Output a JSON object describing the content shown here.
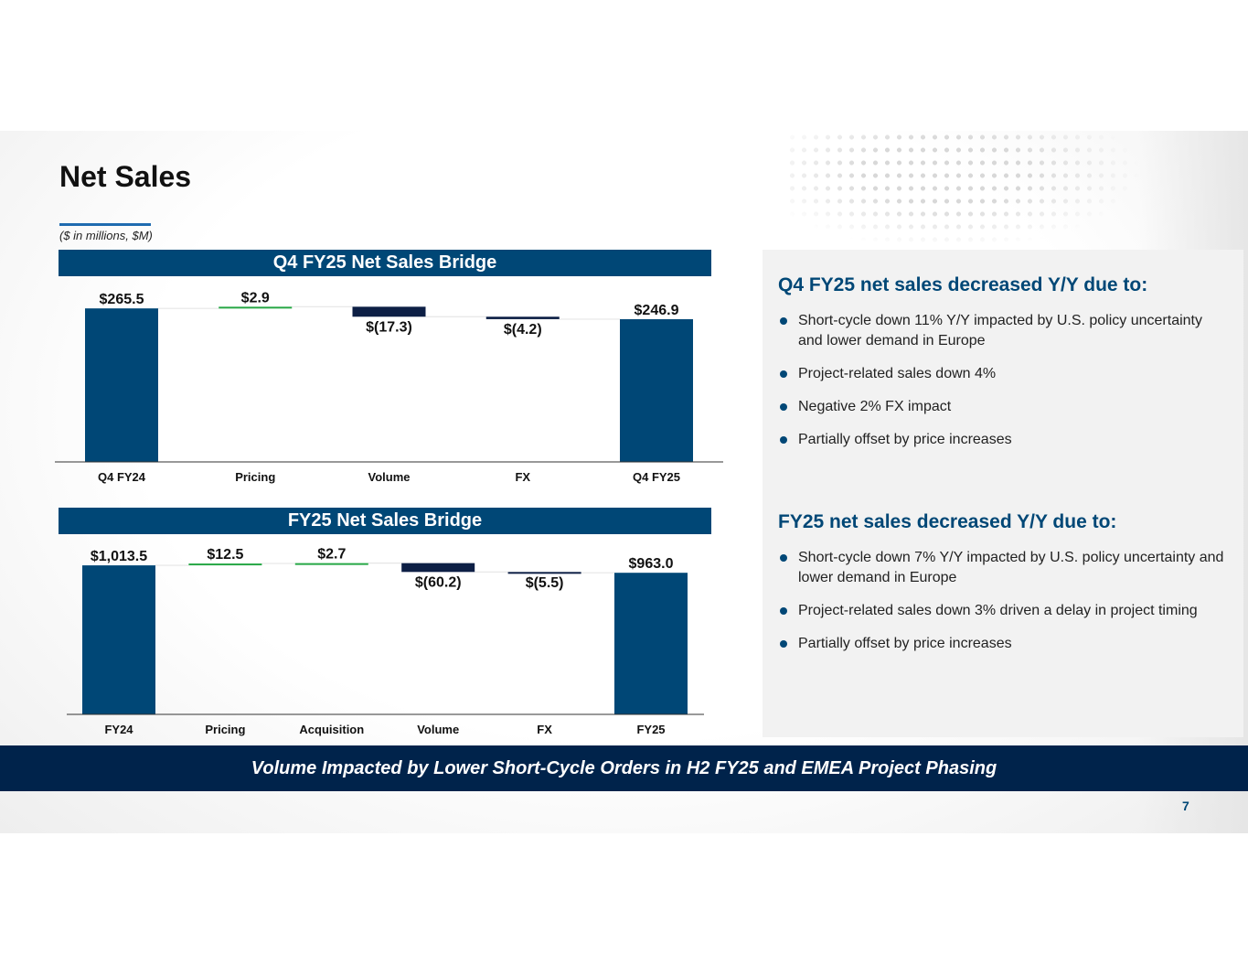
{
  "title": "Net Sales",
  "units": "($ in millions, $M)",
  "colors": {
    "base": "#004776",
    "increase": "#27a745",
    "decrease": "#0d1f45",
    "connector": "#e6e6e6",
    "axis": "#333333"
  },
  "chart_data": [
    {
      "type": "bar",
      "subtype": "waterfall",
      "title": "Q4 FY25 Net Sales Bridge",
      "categories": [
        "Q4 FY24",
        "Pricing",
        "Volume",
        "FX",
        "Q4 FY25"
      ],
      "values": [
        265.5,
        2.9,
        -17.3,
        -4.2,
        246.9
      ],
      "kinds": [
        "total",
        "delta",
        "delta",
        "delta",
        "total"
      ],
      "data_labels": [
        "$265.5",
        "$2.9",
        "$(17.3)",
        "$(4.2)",
        "$246.9"
      ],
      "xlabel": "",
      "ylabel": "",
      "ylim": [
        0,
        280
      ]
    },
    {
      "type": "bar",
      "subtype": "waterfall",
      "title": "FY25 Net Sales Bridge",
      "categories": [
        "FY24",
        "Pricing",
        "Acquisition",
        "Volume",
        "FX",
        "FY25"
      ],
      "values": [
        1013.5,
        12.5,
        2.7,
        -60.2,
        -5.5,
        963.0
      ],
      "kinds": [
        "total",
        "delta",
        "delta",
        "delta",
        "delta",
        "total"
      ],
      "data_labels": [
        "$1,013.5",
        "$12.5",
        "$2.7",
        "$(60.2)",
        "$(5.5)",
        "$963.0"
      ],
      "xlabel": "",
      "ylabel": "",
      "ylim": [
        0,
        1070
      ]
    }
  ],
  "panel": {
    "q4_heading": "Q4 FY25 net sales decreased Y/Y due to:",
    "q4_bullets": [
      "Short-cycle down 11% Y/Y impacted by U.S. policy uncertainty and lower demand in Europe",
      "Project-related sales down 4%",
      "Negative 2% FX impact",
      "Partially offset by price increases"
    ],
    "fy_heading": "FY25 net sales decreased Y/Y due to:",
    "fy_bullets": [
      "Short-cycle down 7% Y/Y impacted by U.S. policy uncertainty and lower demand in Europe",
      "Project-related sales down 3% driven a delay in project timing",
      "Partially offset by price increases"
    ]
  },
  "banner": "Volume Impacted by Lower Short-Cycle Orders in H2 FY25 and EMEA Project Phasing",
  "page_number": "7"
}
